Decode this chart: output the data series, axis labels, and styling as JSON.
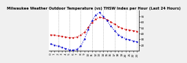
{
  "title": "Milwaukee Weather Outdoor Temperature (vs) THSW Index per Hour (Last 24 Hours)",
  "title_fontsize": 3.8,
  "background_color": "#f0f0f0",
  "plot_bg_color": "#ffffff",
  "grid_color": "#999999",
  "hours": [
    0,
    1,
    2,
    3,
    4,
    5,
    6,
    7,
    8,
    9,
    10,
    11,
    12,
    13,
    14,
    15,
    16,
    17,
    18,
    19,
    20,
    21,
    22,
    23
  ],
  "temp_red": [
    38,
    37,
    36,
    35,
    34,
    33,
    33,
    34,
    37,
    42,
    51,
    59,
    65,
    68,
    67,
    64,
    60,
    56,
    52,
    49,
    47,
    46,
    45,
    44
  ],
  "thsw_blue": [
    22,
    20,
    18,
    16,
    14,
    12,
    11,
    13,
    18,
    30,
    47,
    62,
    72,
    76,
    70,
    62,
    53,
    45,
    38,
    34,
    31,
    29,
    27,
    26
  ],
  "ylim_min": 10,
  "ylim_max": 80,
  "yticks": [
    20,
    30,
    40,
    50,
    60,
    70
  ],
  "ytick_labels": [
    "20",
    "30",
    "40",
    "50",
    "60",
    "70"
  ],
  "red_color": "#cc0000",
  "blue_color": "#0000cc",
  "line_width": 0.8,
  "marker_size": 1.5,
  "tick_fontsize": 3.0,
  "vgrid_hours": [
    2,
    5,
    8,
    11,
    14,
    17,
    20,
    23
  ],
  "xtick_hours": [
    0,
    1,
    2,
    3,
    4,
    5,
    6,
    7,
    8,
    9,
    10,
    11,
    12,
    13,
    14,
    15,
    16,
    17,
    18,
    19,
    20,
    21,
    22,
    23
  ],
  "xtick_labels": [
    "0",
    "1",
    "2",
    "3",
    "4",
    "5",
    "6",
    "7",
    "8",
    "9",
    "10",
    "11",
    "12",
    "13",
    "14",
    "15",
    "16",
    "17",
    "18",
    "19",
    "20",
    "21",
    "22",
    "23"
  ]
}
